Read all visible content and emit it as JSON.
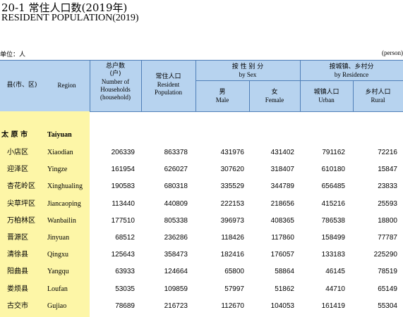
{
  "title_cn": "20-1   常住人口数(2019年)",
  "title_en": "RESIDENT POPULATION(2019)",
  "unit_left": "单位：人",
  "unit_right": "(person)",
  "headers": {
    "county_cn": "县(市、区)",
    "region": "Region",
    "households_cn": "总户数",
    "households_cn2": "(户)",
    "households_en1": "Number of",
    "households_en2": "Households",
    "households_en3": "(household)",
    "resident_cn": "常住人口",
    "resident_en1": "Resident",
    "resident_en2": "Population",
    "bysex_cn": "按 性 别 分",
    "bysex_en": "by  Sex",
    "male_cn": "男",
    "male_en": "Male",
    "female_cn": "女",
    "female_en": "Female",
    "byres_cn": "按城镇、乡村分",
    "byres_en": "by Residence",
    "urban_cn": "城镇人口",
    "urban_en": "Urban",
    "rural_cn": "乡村人口",
    "rural_en": "Rural"
  },
  "city": {
    "name_cn": "太 原 市",
    "name_en": "Taiyuan"
  },
  "rows": [
    {
      "cn": "小店区",
      "en": "Xiaodian",
      "households": "206339",
      "resident": "863378",
      "male": "431976",
      "female": "431402",
      "urban": "791162",
      "rural": "72216"
    },
    {
      "cn": "迎泽区",
      "en": "Yingze",
      "households": "161954",
      "resident": "626027",
      "male": "307620",
      "female": "318407",
      "urban": "610180",
      "rural": "15847"
    },
    {
      "cn": "杏花岭区",
      "en": "Xinghualing",
      "households": "190583",
      "resident": "680318",
      "male": "335529",
      "female": "344789",
      "urban": "656485",
      "rural": "23833"
    },
    {
      "cn": "尖草坪区",
      "en": "Jiancaoping",
      "households": "113440",
      "resident": "440809",
      "male": "222153",
      "female": "218656",
      "urban": "415216",
      "rural": "25593"
    },
    {
      "cn": "万柏林区",
      "en": "Wanbailin",
      "households": "177510",
      "resident": "805338",
      "male": "396973",
      "female": "408365",
      "urban": "786538",
      "rural": "18800"
    },
    {
      "cn": "晋源区",
      "en": "Jinyuan",
      "households": "68512",
      "resident": "236286",
      "male": "118426",
      "female": "117860",
      "urban": "158499",
      "rural": "77787"
    },
    {
      "cn": "清徐县",
      "en": "Qingxu",
      "households": "125643",
      "resident": "358473",
      "male": "182416",
      "female": "176057",
      "urban": "133183",
      "rural": "225290"
    },
    {
      "cn": "阳曲县",
      "en": "Yangqu",
      "households": "63933",
      "resident": "124664",
      "male": "65800",
      "female": "58864",
      "urban": "46145",
      "rural": "78519"
    },
    {
      "cn": "娄烦县",
      "en": "Loufan",
      "households": "53035",
      "resident": "109859",
      "male": "57997",
      "female": "51862",
      "urban": "44710",
      "rural": "65149"
    },
    {
      "cn": "古交市",
      "en": "Gujiao",
      "households": "78689",
      "resident": "216723",
      "male": "112670",
      "female": "104053",
      "urban": "161419",
      "rural": "55304"
    }
  ]
}
